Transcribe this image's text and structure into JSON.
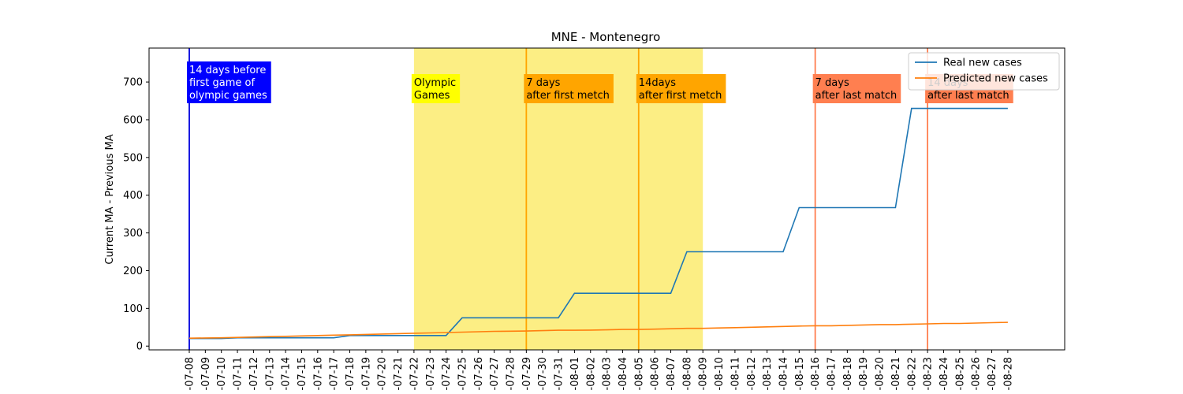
{
  "chart_data": {
    "type": "line",
    "title": "MNE - Montenegro",
    "xlabel": "",
    "ylabel": "Current MA - Previous MA",
    "ylim": [
      -10,
      790
    ],
    "yticks": [
      0,
      100,
      200,
      300,
      400,
      500,
      600,
      700
    ],
    "x": [
      "2021-07-08",
      "2021-07-09",
      "2021-07-10",
      "2021-07-11",
      "2021-07-12",
      "2021-07-13",
      "2021-07-14",
      "2021-07-15",
      "2021-07-16",
      "2021-07-17",
      "2021-07-18",
      "2021-07-19",
      "2021-07-20",
      "2021-07-21",
      "2021-07-22",
      "2021-07-23",
      "2021-07-24",
      "2021-07-25",
      "2021-07-26",
      "2021-07-27",
      "2021-07-28",
      "2021-07-29",
      "2021-07-30",
      "2021-07-31",
      "2021-08-01",
      "2021-08-02",
      "2021-08-03",
      "2021-08-04",
      "2021-08-05",
      "2021-08-06",
      "2021-08-07",
      "2021-08-08",
      "2021-08-09",
      "2021-08-10",
      "2021-08-11",
      "2021-08-12",
      "2021-08-13",
      "2021-08-14",
      "2021-08-15",
      "2021-08-16",
      "2021-08-17",
      "2021-08-18",
      "2021-08-19",
      "2021-08-20",
      "2021-08-21",
      "2021-08-22",
      "2021-08-23",
      "2021-08-24",
      "2021-08-25",
      "2021-08-26",
      "2021-08-27",
      "2021-08-28"
    ],
    "x_tick_labels": [
      "-07-08",
      "-07-09",
      "-07-10",
      "-07-11",
      "-07-12",
      "-07-13",
      "-07-14",
      "-07-15",
      "-07-16",
      "-07-17",
      "-07-18",
      "-07-19",
      "-07-20",
      "-07-21",
      "-07-22",
      "-07-23",
      "-07-24",
      "-07-25",
      "-07-26",
      "-07-27",
      "-07-28",
      "-07-29",
      "-07-30",
      "-07-31",
      "-08-01",
      "-08-02",
      "-08-03",
      "-08-04",
      "-08-05",
      "-08-06",
      "-08-07",
      "-08-08",
      "-08-09",
      "-08-10",
      "-08-11",
      "-08-12",
      "-08-13",
      "-08-14",
      "-08-15",
      "-08-16",
      "-08-17",
      "-08-18",
      "-08-19",
      "-08-20",
      "-08-21",
      "-08-22",
      "-08-23",
      "-08-24",
      "-08-25",
      "-08-26",
      "-08-27",
      "-08-28"
    ],
    "series": [
      {
        "name": "Real new cases",
        "color": "#1f77b4",
        "values": [
          20,
          20,
          20,
          22,
          22,
          22,
          22,
          22,
          22,
          22,
          28,
          28,
          28,
          28,
          28,
          28,
          28,
          75,
          75,
          75,
          75,
          75,
          75,
          75,
          140,
          140,
          140,
          140,
          140,
          140,
          140,
          250,
          250,
          250,
          250,
          250,
          250,
          250,
          367,
          367,
          367,
          367,
          367,
          367,
          367,
          630,
          630,
          630,
          630,
          630,
          630,
          630
        ]
      },
      {
        "name": "Predicted new cases",
        "color": "#ff7f0e",
        "values": [
          21,
          21.5,
          22,
          23,
          24,
          25,
          26,
          27,
          28,
          29,
          30,
          31,
          32,
          33,
          34,
          35,
          36,
          37,
          38,
          39,
          39.5,
          40,
          41,
          42,
          42,
          42.5,
          43,
          44,
          44,
          45,
          46,
          47,
          47,
          48,
          49,
          50,
          51,
          52,
          53,
          54,
          54,
          55,
          56,
          57,
          57,
          58,
          59,
          60,
          60,
          61,
          62,
          63
        ]
      }
    ],
    "shaded_region": {
      "from": "2021-07-22",
      "to": "2021-08-09",
      "color": "#fcee84"
    },
    "vertical_lines": [
      {
        "x": "2021-07-08",
        "color": "#0000dd"
      },
      {
        "x": "2021-07-29",
        "color": "#ffa500"
      },
      {
        "x": "2021-08-05",
        "color": "#ffa500"
      },
      {
        "x": "2021-08-16",
        "color": "#ff7f50"
      },
      {
        "x": "2021-08-23",
        "color": "#ff7f50"
      }
    ],
    "annotations": [
      {
        "x": "2021-07-08",
        "lines": [
          "14 days before",
          "first game of",
          "olympic games"
        ],
        "bg": "#0000ff",
        "fg": "#ffffff"
      },
      {
        "x": "2021-07-22",
        "lines": [
          "Olympic",
          "Games"
        ],
        "bg": "#ffff00",
        "fg": "#000000"
      },
      {
        "x": "2021-07-29",
        "lines": [
          "7 days",
          "after first metch"
        ],
        "bg": "#ffa500",
        "fg": "#000000"
      },
      {
        "x": "2021-08-05",
        "lines": [
          "14days",
          "after first metch"
        ],
        "bg": "#ffa500",
        "fg": "#000000"
      },
      {
        "x": "2021-08-16",
        "lines": [
          "7 days",
          "after last match"
        ],
        "bg": "#ff7f50",
        "fg": "#000000"
      },
      {
        "x": "2021-08-23",
        "lines": [
          "14 days",
          "after last match"
        ],
        "bg": "#ff7f50",
        "fg": "#000000"
      }
    ],
    "legend": {
      "position": "top-right",
      "entries": [
        "Real new cases",
        "Predicted new cases"
      ]
    },
    "grid": false
  }
}
